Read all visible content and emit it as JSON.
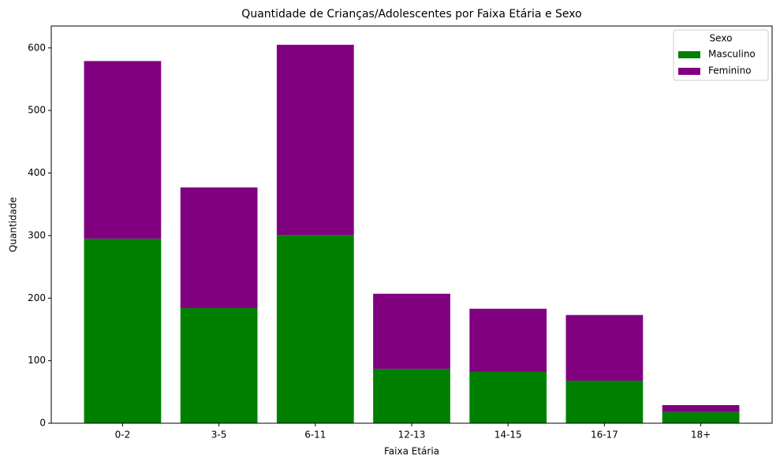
{
  "chart_data": {
    "type": "stacked_bar",
    "title": "Quantidade de Crianças/Adolescentes por Faixa Etária e Sexo",
    "x_label": "Faixa Etária",
    "y_label": "Quantidade",
    "categories": [
      "0-2",
      "3-5",
      "6-11",
      "12-13",
      "14-15",
      "16-17",
      "18+"
    ],
    "series": [
      {
        "name": "Masculino",
        "color": "#008000",
        "values": [
          295,
          184,
          301,
          87,
          82,
          68,
          18
        ]
      },
      {
        "name": "Feminino",
        "color": "#800080",
        "values": [
          284,
          193,
          304,
          120,
          101,
          105,
          11
        ]
      }
    ],
    "ylim": [
      0,
      635
    ],
    "yticks": [
      0,
      100,
      200,
      300,
      400,
      500,
      600
    ],
    "legend_title": "Sexo",
    "legend_position": "upper right",
    "grid": false
  }
}
